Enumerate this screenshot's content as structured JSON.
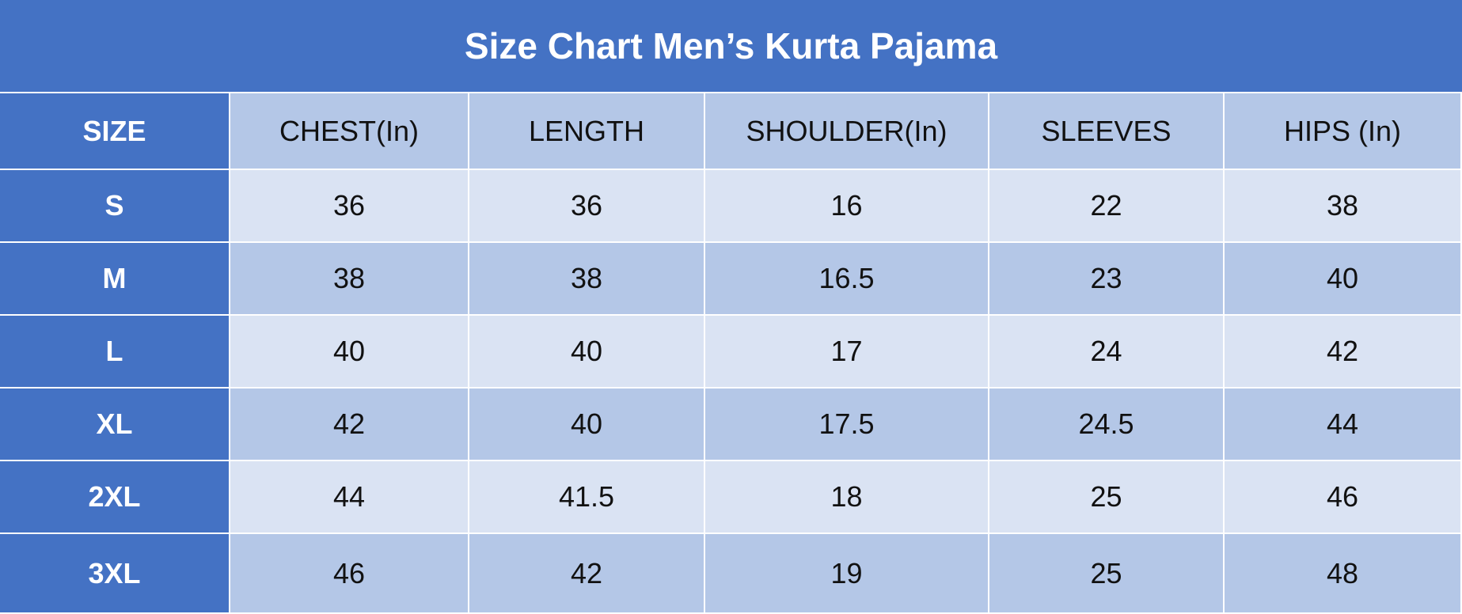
{
  "title": "Size Chart Men’s Kurta Pajama",
  "table": {
    "header": [
      "SIZE",
      "CHEST(In)",
      "LENGTH",
      "SHOULDER(In)",
      "SLEEVES",
      "HIPS (In)"
    ],
    "rows": [
      [
        "S",
        36,
        36,
        16,
        22,
        38
      ],
      [
        "M",
        38,
        38,
        16.5,
        23,
        40
      ],
      [
        "L",
        40,
        40,
        17,
        24,
        42
      ],
      [
        "XL",
        42,
        40,
        17.5,
        24.5,
        44
      ],
      [
        "2XL",
        44,
        41.5,
        18,
        25,
        46
      ],
      [
        "3XL",
        46,
        42,
        19,
        25,
        48
      ]
    ]
  }
}
